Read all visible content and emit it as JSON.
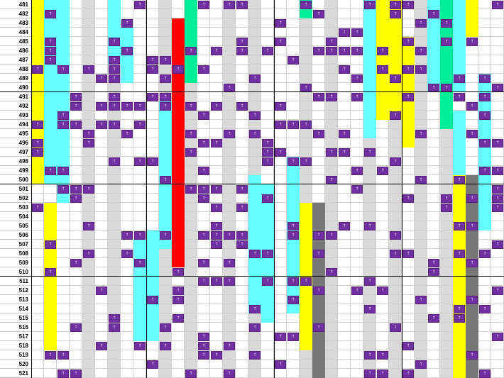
{
  "rows": [
    "481",
    "482",
    "483",
    "484",
    "485",
    "486",
    "487",
    "488",
    "489",
    "490",
    "491",
    "492",
    "493",
    "494",
    "495",
    "496",
    "497",
    "498",
    "499",
    "500",
    "501",
    "502",
    "503",
    "504",
    "505",
    "506",
    "507",
    "508",
    "509",
    "510",
    "511",
    "512",
    "513",
    "514",
    "515",
    "516",
    "517",
    "518",
    "519",
    "520",
    "521"
  ],
  "mark_glyph": "↑",
  "colors": {
    "mark": "#7030a0",
    "cyan": "#66ffff",
    "yellow": "#ffff00",
    "red": "#ff0000",
    "green": "#00ee99",
    "gray": "#777777",
    "light_gray": "#d9d9d9",
    "divider": "#000000"
  }
}
